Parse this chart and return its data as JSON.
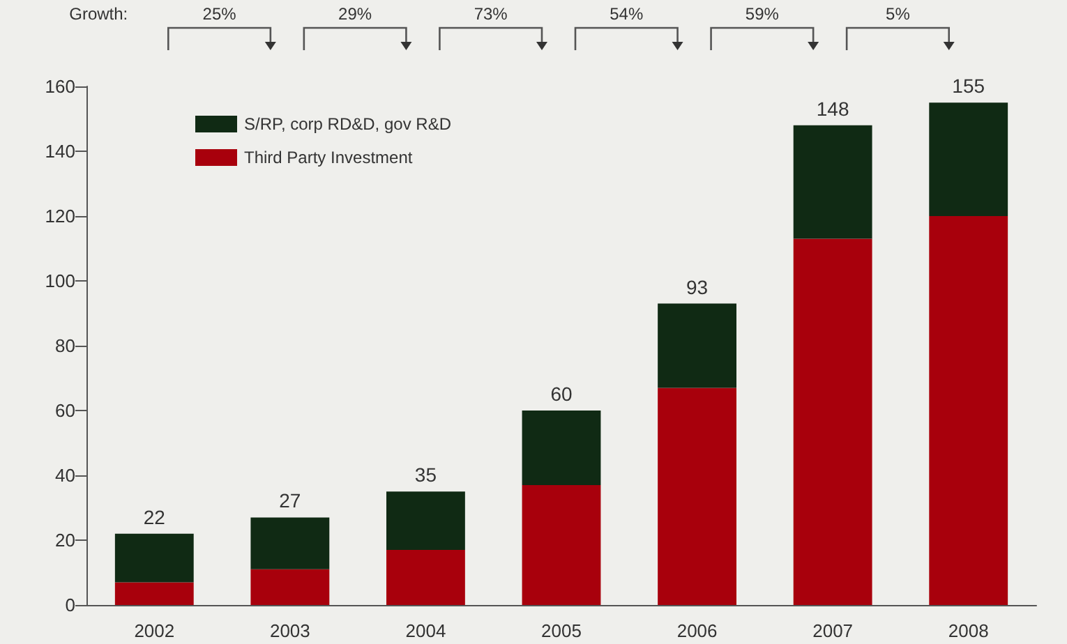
{
  "chart_data": {
    "type": "bar",
    "stacked": true,
    "categories": [
      "2002",
      "2003",
      "2004",
      "2005",
      "2006",
      "2007",
      "2008"
    ],
    "series": [
      {
        "name": "Third Party Investment",
        "color": "#a8000c",
        "values": [
          7,
          11,
          17,
          37,
          67,
          113,
          120
        ]
      },
      {
        "name": "S/RP, corp RD&D, gov R&D",
        "color": "#102a14",
        "values": [
          15,
          16,
          18,
          23,
          26,
          35,
          35
        ]
      }
    ],
    "totals": [
      "22",
      "27",
      "35",
      "60",
      "93",
      "148",
      "155"
    ],
    "ylim": [
      0,
      160
    ],
    "yticks": [
      0,
      20,
      40,
      60,
      80,
      100,
      120,
      140,
      160
    ],
    "annotations": [
      "Growth:",
      "25%",
      "29%",
      "73%",
      "54%",
      "59%",
      "5%"
    ],
    "legend": "top left",
    "grid": false
  }
}
